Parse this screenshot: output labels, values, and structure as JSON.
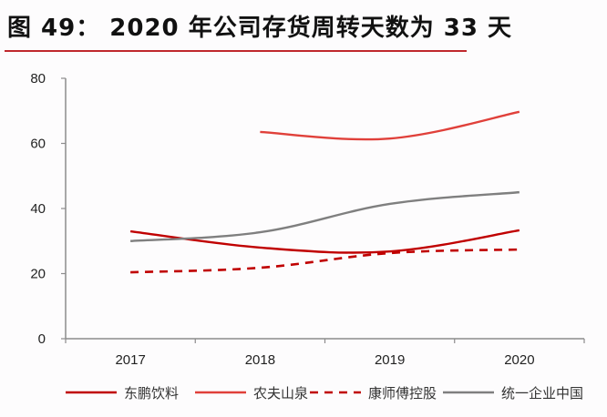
{
  "title": "图 49： 2020 年公司存货周转天数为 33 天",
  "chart_data": {
    "type": "line",
    "title": "图 49： 2020 年公司存货周转天数为 33 天",
    "xlabel": "",
    "ylabel": "",
    "categories": [
      "2017",
      "2018",
      "2019",
      "2020"
    ],
    "ylim": [
      0,
      80
    ],
    "yticks": [
      "0",
      "20",
      "40",
      "60",
      "80"
    ],
    "grid": false,
    "legend_position": "bottom",
    "series": [
      {
        "name": "东鹏饮料",
        "values": [
          33,
          28,
          26.8,
          33.3
        ],
        "color": "#c00000",
        "dash": false
      },
      {
        "name": "农夫山泉",
        "values": [
          null,
          63.5,
          61.5,
          69.7
        ],
        "color": "#e0403a",
        "dash": false
      },
      {
        "name": "康师傅控股",
        "values": [
          20.4,
          21.8,
          26.3,
          27.4
        ],
        "color": "#c00000",
        "dash": true
      },
      {
        "name": "统一企业中国",
        "values": [
          30,
          32.7,
          41.4,
          45
        ],
        "color": "#7f7f7f",
        "dash": false
      }
    ]
  }
}
